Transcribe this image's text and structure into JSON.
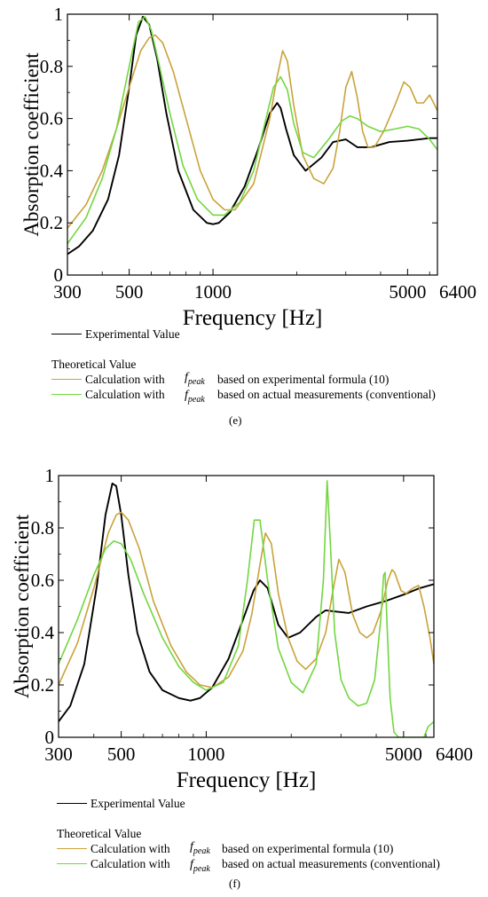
{
  "colors": {
    "experimental": "#000000",
    "formula": "#c9a23a",
    "measured": "#73d641"
  },
  "panels": [
    {
      "label": "(e)",
      "chart_data": {
        "type": "line",
        "xlabel": "Frequency [Hz]",
        "ylabel": "Absorption coefficient",
        "xscale": "log",
        "xlim": [
          300,
          6400
        ],
        "ylim": [
          0,
          1
        ],
        "xticks": [
          300,
          500,
          1000,
          5000,
          6400
        ],
        "yticks": [
          0,
          0.2,
          0.4,
          0.6,
          0.8,
          1
        ],
        "xtick_labels": [
          "300",
          "500",
          "1000",
          "5000",
          "6400"
        ],
        "ytick_labels": [
          "0",
          "0.2",
          "0.4",
          "0.6",
          "0.8",
          "1"
        ],
        "grid": false,
        "series": [
          {
            "name": "Experimental Value",
            "color": "#000000",
            "x": [
              300,
              330,
              370,
              420,
              460,
              500,
              530,
              560,
              590,
              630,
              680,
              750,
              850,
              950,
              1000,
              1050,
              1150,
              1300,
              1450,
              1600,
              1700,
              1750,
              1830,
              1950,
              2150,
              2450,
              2700,
              3000,
              3300,
              3700,
              4300,
              5000,
              6000,
              6400
            ],
            "y": [
              0.08,
              0.11,
              0.17,
              0.29,
              0.46,
              0.72,
              0.92,
              0.99,
              0.96,
              0.83,
              0.62,
              0.4,
              0.25,
              0.2,
              0.195,
              0.2,
              0.24,
              0.34,
              0.48,
              0.62,
              0.66,
              0.64,
              0.56,
              0.46,
              0.4,
              0.45,
              0.51,
              0.52,
              0.49,
              0.49,
              0.51,
              0.515,
              0.525,
              0.525
            ]
          },
          {
            "name": "Calculation with fpeak based on experimental formula (10)",
            "color": "#c9a23a",
            "x": [
              300,
              350,
              400,
              450,
              500,
              550,
              590,
              620,
              660,
              720,
              800,
              900,
              1000,
              1100,
              1200,
              1400,
              1600,
              1700,
              1780,
              1850,
              1950,
              2100,
              2300,
              2500,
              2700,
              2850,
              3000,
              3150,
              3300,
              3450,
              3600,
              3800,
              4100,
              4500,
              4850,
              5100,
              5400,
              5700,
              6000,
              6200,
              6400
            ],
            "y": [
              0.18,
              0.27,
              0.4,
              0.56,
              0.72,
              0.86,
              0.91,
              0.92,
              0.89,
              0.78,
              0.6,
              0.4,
              0.29,
              0.25,
              0.25,
              0.35,
              0.6,
              0.76,
              0.86,
              0.82,
              0.65,
              0.46,
              0.37,
              0.35,
              0.41,
              0.55,
              0.72,
              0.78,
              0.68,
              0.55,
              0.49,
              0.49,
              0.55,
              0.65,
              0.74,
              0.72,
              0.66,
              0.66,
              0.69,
              0.66,
              0.63
            ]
          },
          {
            "name": "Calculation with fpeak based on actual measurements (conventional)",
            "color": "#73d641",
            "x": [
              300,
              350,
              400,
              450,
              500,
              540,
              570,
              600,
              640,
              700,
              780,
              880,
              1000,
              1100,
              1250,
              1400,
              1550,
              1650,
              1750,
              1850,
              1950,
              2100,
              2300,
              2600,
              2900,
              3100,
              3300,
              3600,
              4000,
              4500,
              5000,
              5500,
              6000,
              6400
            ],
            "y": [
              0.12,
              0.22,
              0.37,
              0.56,
              0.8,
              0.97,
              0.99,
              0.94,
              0.81,
              0.62,
              0.42,
              0.29,
              0.23,
              0.23,
              0.28,
              0.4,
              0.6,
              0.72,
              0.76,
              0.71,
              0.58,
              0.47,
              0.45,
              0.52,
              0.59,
              0.61,
              0.6,
              0.57,
              0.55,
              0.56,
              0.57,
              0.56,
              0.52,
              0.48
            ]
          }
        ]
      },
      "legend": {
        "experimental": "Experimental Value",
        "theoretical_title": "Theoretical Value",
        "calc_prefix": "Calculation with",
        "formula_suffix": "based on experimental formula (10)",
        "measured_suffix": "based on actual measurements (conventional)",
        "f_symbol": "f",
        "f_sub": "peak"
      }
    },
    {
      "label": "(f)",
      "chart_data": {
        "type": "line",
        "xlabel": "Frequency [Hz]",
        "ylabel": "Absorption coefficient",
        "xscale": "log",
        "xlim": [
          300,
          6400
        ],
        "ylim": [
          0,
          1
        ],
        "xticks": [
          300,
          500,
          1000,
          5000,
          6400
        ],
        "yticks": [
          0,
          0.2,
          0.4,
          0.6,
          0.8,
          1
        ],
        "xtick_labels": [
          "300",
          "500",
          "1000",
          "5000",
          "6400"
        ],
        "ytick_labels": [
          "0",
          "0.2",
          "0.4",
          "0.6",
          "0.8",
          "1"
        ],
        "grid": false,
        "series": [
          {
            "name": "Experimental Value",
            "color": "#000000",
            "x": [
              300,
              330,
              370,
              410,
              440,
              465,
              480,
              500,
              530,
              570,
              630,
              700,
              800,
              880,
              950,
              1050,
              1200,
              1350,
              1470,
              1550,
              1650,
              1800,
              1950,
              2150,
              2450,
              2650,
              2900,
              3200,
              3700,
              4300,
              5000,
              5700,
              6400
            ],
            "y": [
              0.06,
              0.12,
              0.28,
              0.58,
              0.85,
              0.97,
              0.96,
              0.85,
              0.62,
              0.4,
              0.25,
              0.18,
              0.15,
              0.14,
              0.15,
              0.19,
              0.3,
              0.45,
              0.56,
              0.6,
              0.57,
              0.43,
              0.38,
              0.4,
              0.46,
              0.485,
              0.48,
              0.475,
              0.5,
              0.52,
              0.545,
              0.57,
              0.585
            ]
          },
          {
            "name": "Calculation with fpeak based on experimental formula (10)",
            "color": "#c9a23a",
            "x": [
              300,
              350,
              400,
              450,
              480,
              500,
              530,
              580,
              650,
              750,
              850,
              950,
              1050,
              1200,
              1350,
              1450,
              1550,
              1620,
              1700,
              1800,
              1950,
              2100,
              2250,
              2450,
              2650,
              2800,
              2950,
              3100,
              3300,
              3500,
              3700,
              3900,
              4150,
              4400,
              4550,
              4650,
              4750,
              4900,
              5100,
              5400,
              5650,
              5900,
              6200,
              6400
            ],
            "y": [
              0.2,
              0.36,
              0.57,
              0.78,
              0.85,
              0.86,
              0.83,
              0.72,
              0.52,
              0.35,
              0.25,
              0.2,
              0.19,
              0.23,
              0.33,
              0.47,
              0.66,
              0.78,
              0.74,
              0.55,
              0.38,
              0.29,
              0.26,
              0.3,
              0.4,
              0.55,
              0.68,
              0.63,
              0.47,
              0.4,
              0.38,
              0.4,
              0.48,
              0.6,
              0.64,
              0.63,
              0.6,
              0.56,
              0.55,
              0.57,
              0.58,
              0.5,
              0.38,
              0.28
            ]
          },
          {
            "name": "Calculation with fpeak based on actual measurements (conventional)",
            "color": "#73d641",
            "x": [
              300,
              350,
              400,
              440,
              470,
              500,
              540,
              600,
              700,
              800,
              900,
              1000,
              1150,
              1300,
              1400,
              1480,
              1550,
              1650,
              1800,
              2000,
              2200,
              2450,
              2600,
              2680,
              2750,
              2850,
              3000,
              3200,
              3450,
              3700,
              3950,
              4150,
              4250,
              4300,
              4380,
              4480,
              4620,
              4800,
              5000,
              5300,
              5600,
              5900,
              6100,
              6400
            ],
            "y": [
              0.28,
              0.45,
              0.62,
              0.72,
              0.75,
              0.74,
              0.68,
              0.55,
              0.38,
              0.27,
              0.21,
              0.18,
              0.21,
              0.35,
              0.6,
              0.83,
              0.83,
              0.6,
              0.34,
              0.21,
              0.17,
              0.28,
              0.6,
              0.98,
              0.75,
              0.4,
              0.22,
              0.15,
              0.12,
              0.13,
              0.22,
              0.45,
              0.62,
              0.63,
              0.4,
              0.15,
              0.02,
              0.0,
              0.0,
              0.0,
              0.0,
              0.0,
              0.04,
              0.06
            ]
          }
        ]
      },
      "legend": {
        "experimental": "Experimental Value",
        "theoretical_title": "Theoretical Value",
        "calc_prefix": "Calculation with",
        "formula_suffix": "based on experimental formula (10)",
        "measured_suffix": "based on actual measurements (conventional)",
        "f_symbol": "f",
        "f_sub": "peak"
      }
    }
  ]
}
